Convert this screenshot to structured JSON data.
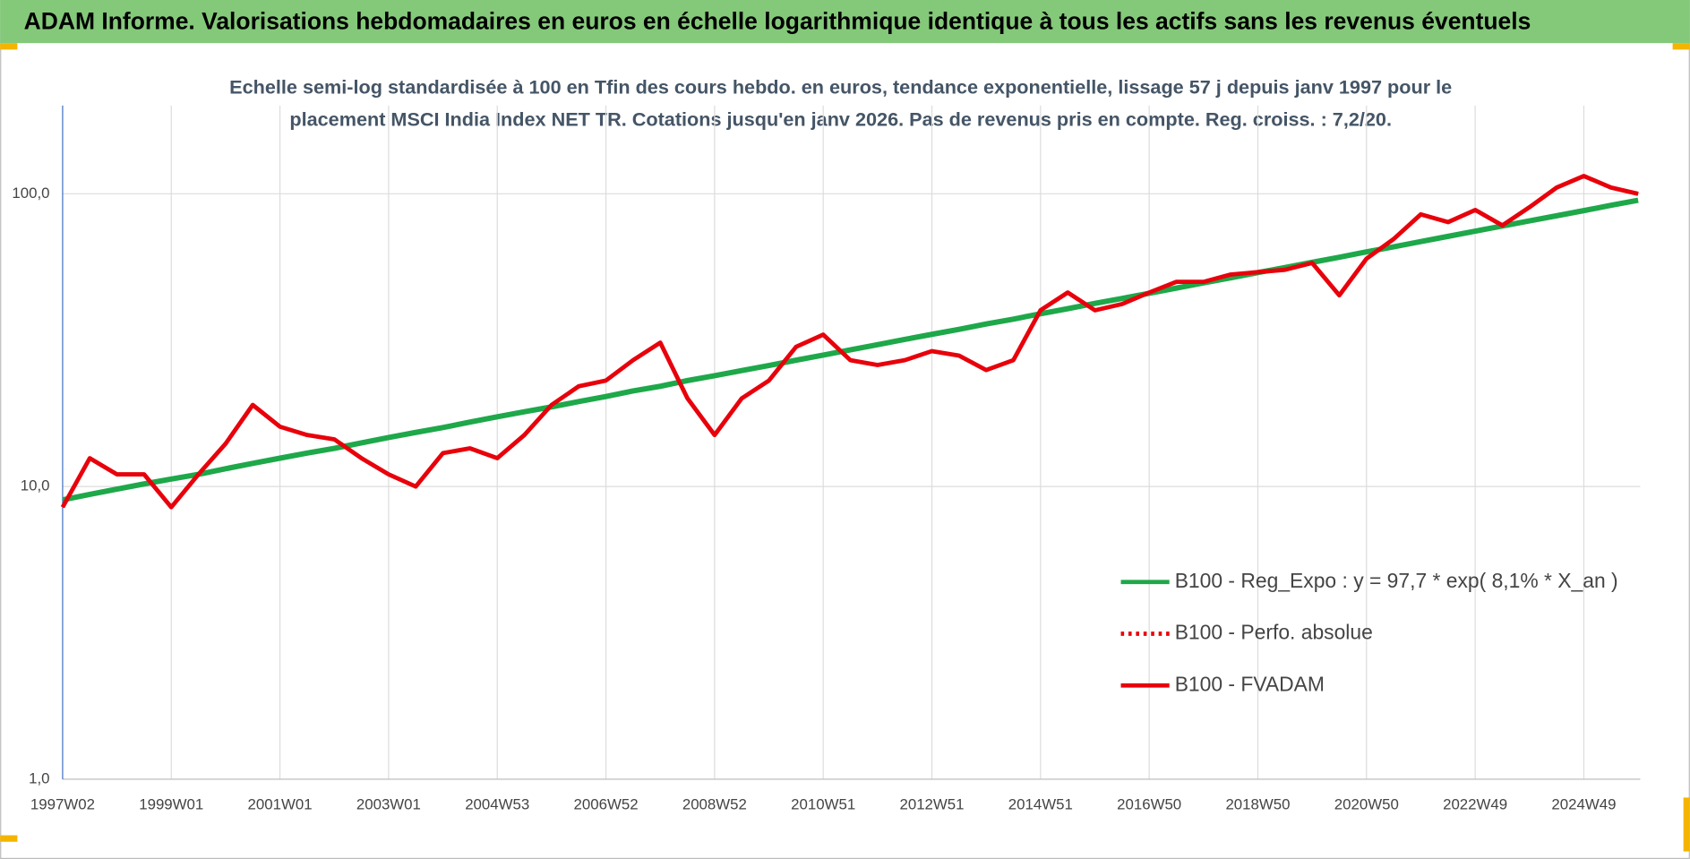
{
  "chart_data": {
    "type": "line",
    "title": "ADAM Informe. Valorisations hebdomadaires en euros en échelle logarithmique identique à tous les actifs sans les revenus éventuels",
    "subtitle": [
      "Echelle semi-log standardisée à 100 en Tfin des cours hebdo. en euros, tendance exponentielle, lissage 57 j depuis janv 1997 pour le",
      "placement MSCI India Index NET TR.  Cotations jusqu'en janv 2026. Pas de revenus pris en compte. Reg. croiss. : 7,2/20."
    ],
    "categories": [
      "1997W02",
      null,
      null,
      null,
      "1999W01",
      null,
      null,
      null,
      "2001W01",
      null,
      null,
      null,
      "2003W01",
      null,
      null,
      null,
      "2004W53",
      null,
      null,
      null,
      "2006W52",
      null,
      null,
      null,
      "2008W52",
      null,
      null,
      null,
      "2010W51",
      null,
      null,
      null,
      "2012W51",
      null,
      null,
      null,
      "2014W51",
      null,
      null,
      null,
      "2016W50",
      null,
      null,
      null,
      "2018W50",
      null,
      null,
      null,
      "2020W50",
      null,
      null,
      null,
      "2022W49",
      null,
      null,
      null,
      "2024W49",
      null,
      null
    ],
    "series": [
      {
        "name": "B100 - Reg_Expo : y = 97,7 * exp( 8,1% *  X_an )",
        "color": "#1ea84a",
        "style": "solid",
        "values": [
          9.0,
          9.4,
          9.8,
          10.2,
          10.6,
          11.0,
          11.5,
          12.0,
          12.5,
          13.0,
          13.5,
          14.1,
          14.7,
          15.3,
          15.9,
          16.6,
          17.3,
          18.0,
          18.7,
          19.5,
          20.3,
          21.2,
          22.0,
          23.0,
          23.9,
          24.9,
          25.9,
          27.0,
          28.1,
          29.3,
          30.5,
          31.8,
          33.1,
          34.4,
          35.9,
          37.3,
          38.9,
          40.5,
          42.2,
          43.9,
          45.7,
          47.6,
          49.6,
          51.6,
          53.8,
          56.0,
          58.3,
          60.7,
          63.3,
          65.9,
          68.7,
          71.5,
          74.5,
          77.6,
          80.8,
          84.1,
          87.6,
          91.3,
          95.0
        ]
      },
      {
        "name": "B100 - Perfo. absolue",
        "color": "#e8000b",
        "style": "dotted",
        "values": [
          8.5,
          12.5,
          11,
          11,
          8.5,
          11,
          14,
          19,
          16,
          15,
          14.5,
          12.5,
          11,
          10,
          13,
          13.5,
          12.5,
          15,
          19,
          22,
          23,
          27,
          31,
          20,
          15,
          20,
          23,
          30,
          33,
          27,
          26,
          27,
          29,
          28,
          25,
          27,
          40,
          46,
          40,
          42,
          46,
          50,
          50,
          53,
          54,
          55,
          58,
          45,
          60,
          70,
          85,
          80,
          88,
          78,
          90,
          105,
          115,
          105,
          100
        ]
      },
      {
        "name": "B100 - FVADAM",
        "color": "#e8000b",
        "style": "solid",
        "values": [
          8.5,
          12.5,
          11,
          11,
          8.5,
          11,
          14,
          19,
          16,
          15,
          14.5,
          12.5,
          11,
          10,
          13,
          13.5,
          12.5,
          15,
          19,
          22,
          23,
          27,
          31,
          20,
          15,
          20,
          23,
          30,
          33,
          27,
          26,
          27,
          29,
          28,
          25,
          27,
          40,
          46,
          40,
          42,
          46,
          50,
          50,
          53,
          54,
          55,
          58,
          45,
          60,
          70,
          85,
          80,
          88,
          78,
          90,
          105,
          115,
          105,
          100
        ]
      }
    ],
    "ylim": [
      1,
      200
    ],
    "log_y": true,
    "yticks": [
      {
        "value": 1,
        "label": "1,0"
      },
      {
        "value": 10,
        "label": "10,0"
      },
      {
        "value": 100,
        "label": "100,0"
      }
    ],
    "grid": true,
    "legend": "right"
  }
}
